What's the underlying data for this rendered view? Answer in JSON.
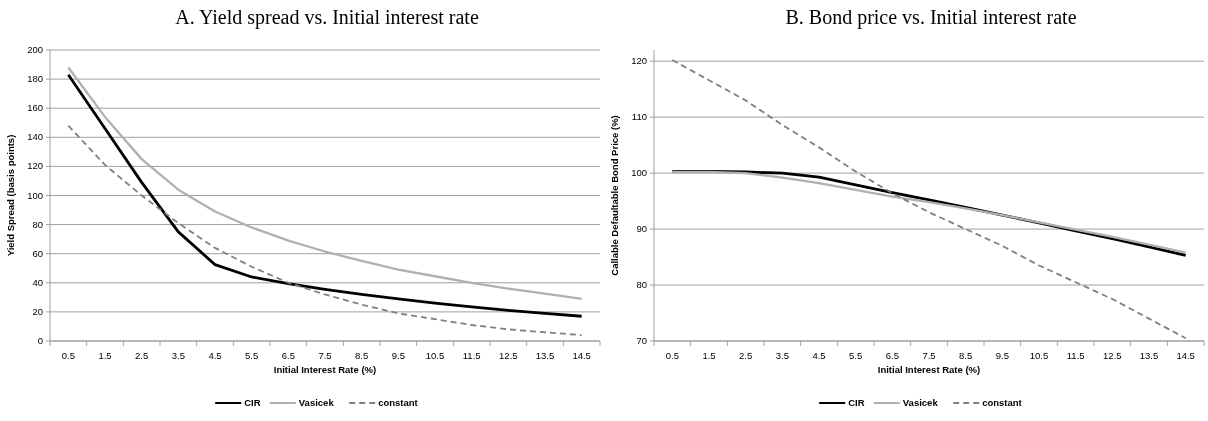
{
  "chart_data": [
    {
      "type": "line",
      "title": "A.   Yield spread vs. Initial interest rate",
      "xlabel": "Initial Interest Rate (%)",
      "ylabel": "Yield Spread (basis points)",
      "categories": [
        "0.5",
        "1.5",
        "2.5",
        "3.5",
        "4.5",
        "5.5",
        "6.5",
        "7.5",
        "8.5",
        "9.5",
        "10.5",
        "11.5",
        "12.5",
        "13.5",
        "14.5"
      ],
      "ylim": [
        0,
        200
      ],
      "yticks": [
        0,
        20,
        40,
        60,
        80,
        100,
        120,
        140,
        160,
        180,
        200
      ],
      "grid": "y",
      "legend": "bottom",
      "marker": "none",
      "series": [
        {
          "name": "CIR",
          "color": "#000000",
          "line_style": "solid",
          "values": [
            183,
            146,
            109,
            75,
            52.5,
            44,
            39.5,
            35.5,
            32,
            29,
            26,
            23.5,
            21,
            19,
            17
          ]
        },
        {
          "name": "Vasicek",
          "color": "#b0b0b0",
          "line_style": "solid",
          "values": [
            188,
            154,
            125,
            104,
            89,
            78,
            69,
            61.5,
            55,
            49,
            44.5,
            40,
            36,
            32.5,
            29
          ]
        },
        {
          "name": "constant",
          "color": "#808080",
          "line_style": "dashed",
          "values": [
            148,
            121,
            100,
            81,
            64,
            51,
            40,
            32,
            25,
            19,
            15,
            11,
            8,
            6,
            4
          ]
        }
      ]
    },
    {
      "type": "line",
      "title": "B.   Bond price vs. Initial interest rate",
      "xlabel": "Initial Interest Rate (%)",
      "ylabel": "Callable Defaultable Bond Price (%)",
      "categories": [
        "0.5",
        "1.5",
        "2.5",
        "3.5",
        "4.5",
        "5.5",
        "6.5",
        "7.5",
        "8.5",
        "9.5",
        "10.5",
        "11.5",
        "12.5",
        "13.5",
        "14.5"
      ],
      "ylim": [
        70,
        122
      ],
      "yticks": [
        70,
        80,
        90,
        100,
        110,
        120
      ],
      "grid": "y",
      "legend": "bottom",
      "marker": "none",
      "series": [
        {
          "name": "CIR",
          "color": "#000000",
          "line_style": "solid",
          "values": [
            100.3,
            100.3,
            100.2,
            100,
            99.3,
            97.9,
            96.5,
            95.2,
            93.9,
            92.5,
            91.1,
            89.7,
            88.3,
            86.8,
            85.3
          ]
        },
        {
          "name": "Vasicek",
          "color": "#b0b0b0",
          "line_style": "solid",
          "values": [
            100.2,
            100.2,
            100,
            99.2,
            98.2,
            97,
            95.8,
            94.8,
            93.7,
            92.5,
            91.2,
            89.9,
            88.6,
            87.2,
            85.8
          ]
        },
        {
          "name": "constant",
          "color": "#808080",
          "line_style": "dashed",
          "values": [
            120.2,
            116.6,
            113,
            108.6,
            104.6,
            100.3,
            96.4,
            93,
            90,
            87,
            83.5,
            80.5,
            77.5,
            74,
            70.5
          ]
        }
      ]
    }
  ]
}
